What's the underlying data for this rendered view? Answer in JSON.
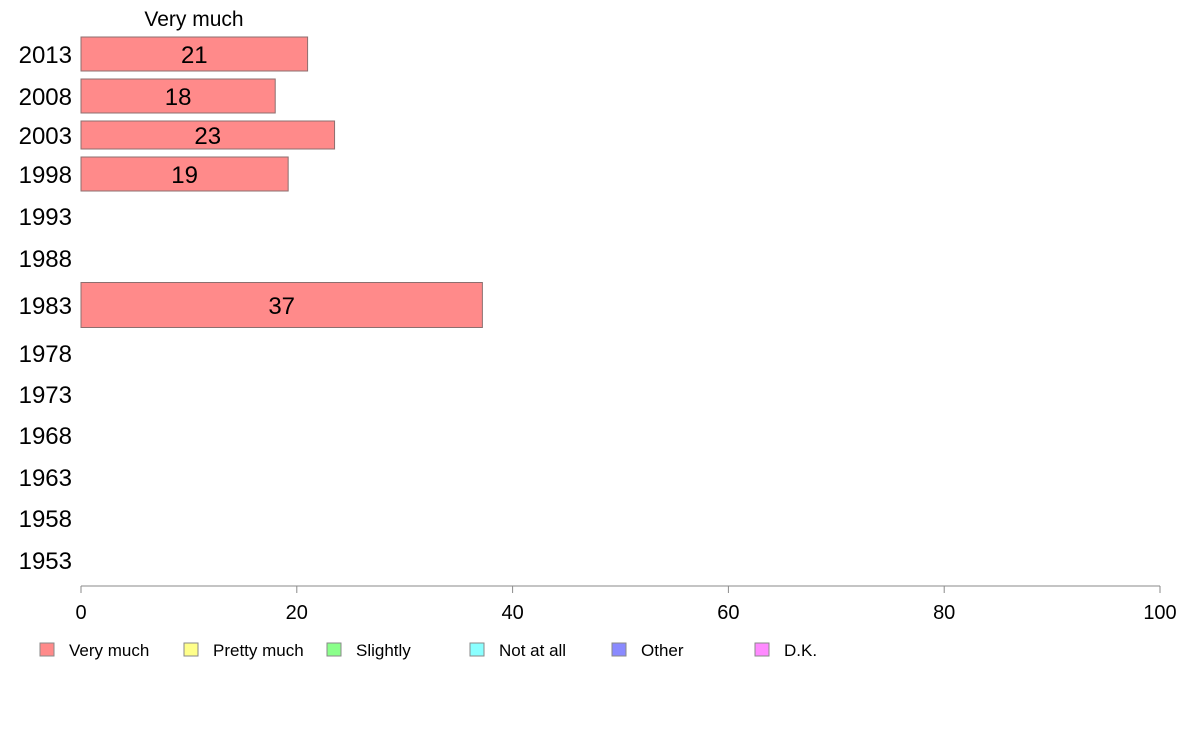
{
  "chart_data": {
    "type": "bar",
    "orientation": "horizontal",
    "stacked": true,
    "categories": [
      "2013",
      "2008",
      "2003",
      "1998",
      "1993",
      "1988",
      "1983",
      "1978",
      "1973",
      "1968",
      "1963",
      "1958",
      "1953"
    ],
    "series": [
      {
        "name": "Very much",
        "color": "#ff8a8a",
        "values": [
          21,
          18,
          23.5,
          19.2,
          null,
          null,
          37.2,
          null,
          null,
          null,
          null,
          null,
          null
        ],
        "labels": [
          "21",
          "18",
          "23",
          "19",
          "",
          "",
          "37",
          "",
          "",
          "",
          "",
          "",
          ""
        ]
      },
      {
        "name": "Pretty much",
        "color": "#ffff8a",
        "values": [
          null,
          null,
          null,
          null,
          null,
          null,
          null,
          null,
          null,
          null,
          null,
          null,
          null
        ]
      },
      {
        "name": "Slightly",
        "color": "#8aff8a",
        "values": [
          null,
          null,
          null,
          null,
          null,
          null,
          null,
          null,
          null,
          null,
          null,
          null,
          null
        ]
      },
      {
        "name": "Not at all",
        "color": "#8affff",
        "values": [
          null,
          null,
          null,
          null,
          null,
          null,
          null,
          null,
          null,
          null,
          null,
          null,
          null
        ]
      },
      {
        "name": "Other",
        "color": "#8a8aff",
        "values": [
          null,
          null,
          null,
          null,
          null,
          null,
          null,
          null,
          null,
          null,
          null,
          null,
          null
        ]
      },
      {
        "name": "D.K.",
        "color": "#ff8aff",
        "values": [
          null,
          null,
          null,
          null,
          null,
          null,
          null,
          null,
          null,
          null,
          null,
          null,
          null
        ]
      }
    ],
    "series_title": "Very much",
    "xlim": [
      0,
      100
    ],
    "xticks": [
      "0",
      "20",
      "40",
      "60",
      "80",
      "100"
    ],
    "grid": false,
    "legend_position": "bottom"
  }
}
